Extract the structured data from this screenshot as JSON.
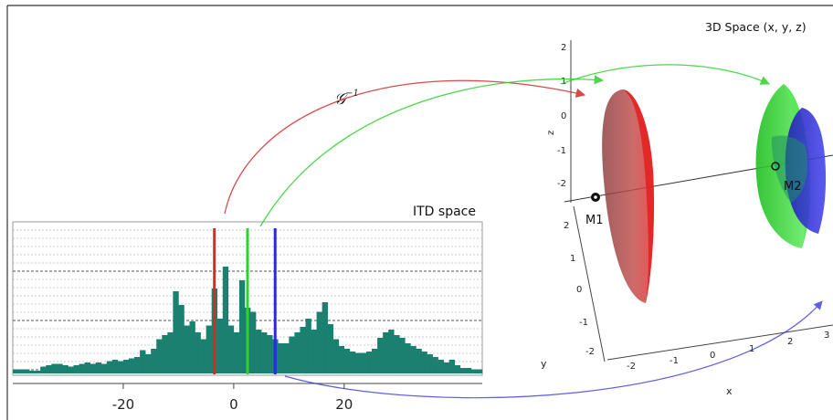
{
  "labels": {
    "space3d_title": "3D Space (x, y, z)",
    "itd_title": "ITD space",
    "operator": "𝒢",
    "operator_sup": "−1",
    "m1": "M1",
    "m2": "M2"
  },
  "axes3d": {
    "z_label": "z",
    "z_ticks": [
      "2",
      "1",
      "0",
      "-1",
      "-2"
    ],
    "y_label": "y",
    "y_ticks": [
      "2",
      "1",
      "0",
      "-1",
      "-2"
    ],
    "x_label": "x",
    "x_ticks": [
      "-2",
      "-1",
      "0",
      "1",
      "2",
      "3"
    ]
  },
  "colors": {
    "red": "#d42a2a",
    "green": "#2fd12f",
    "blue": "#2a2ad8",
    "histogram": "#1a8070",
    "border": "#333333"
  },
  "chart_data": {
    "type": "bar",
    "title": "ITD space",
    "x_ticks": [
      "-20",
      "0",
      "20"
    ],
    "xlim": [
      -40,
      45
    ],
    "markers": [
      {
        "color": "red",
        "x": -4
      },
      {
        "color": "green",
        "x": 2
      },
      {
        "color": "blue",
        "x": 7
      }
    ],
    "bins_x": [
      -40,
      -39,
      -38,
      -37,
      -36,
      -35,
      -34,
      -33,
      -32,
      -31,
      -30,
      -29,
      -28,
      -27,
      -26,
      -25,
      -24,
      -23,
      -22,
      -21,
      -20,
      -19,
      -18,
      -17,
      -16,
      -15,
      -14,
      -13,
      -12,
      -11,
      -10,
      -9,
      -8,
      -7,
      -6,
      -5,
      -4,
      -3,
      -2,
      -1,
      0,
      1,
      2,
      3,
      4,
      5,
      6,
      7,
      8,
      9,
      10,
      11,
      12,
      13,
      14,
      15,
      16,
      17,
      18,
      19,
      20,
      21,
      22,
      23,
      24,
      25,
      26,
      27,
      28,
      29,
      30,
      31,
      32,
      33,
      34,
      35,
      36,
      37,
      38,
      39,
      40,
      41,
      42,
      43,
      44
    ],
    "values": [
      0.03,
      0.03,
      0.03,
      0.02,
      0.02,
      0.05,
      0.06,
      0.07,
      0.07,
      0.06,
      0.05,
      0.06,
      0.07,
      0.08,
      0.07,
      0.08,
      0.07,
      0.09,
      0.1,
      0.09,
      0.1,
      0.11,
      0.12,
      0.17,
      0.14,
      0.18,
      0.25,
      0.28,
      0.3,
      0.6,
      0.5,
      0.35,
      0.38,
      0.3,
      0.25,
      0.35,
      0.62,
      0.4,
      0.78,
      0.35,
      0.3,
      0.68,
      0.48,
      0.45,
      0.32,
      0.3,
      0.28,
      0.25,
      0.22,
      0.22,
      0.27,
      0.3,
      0.34,
      0.4,
      0.32,
      0.45,
      0.52,
      0.36,
      0.25,
      0.2,
      0.18,
      0.16,
      0.15,
      0.15,
      0.16,
      0.18,
      0.26,
      0.3,
      0.32,
      0.28,
      0.26,
      0.22,
      0.2,
      0.18,
      0.16,
      0.14,
      0.12,
      0.1,
      0.08,
      0.1,
      0.06,
      0.04,
      0.04,
      0.03,
      0.03
    ]
  }
}
